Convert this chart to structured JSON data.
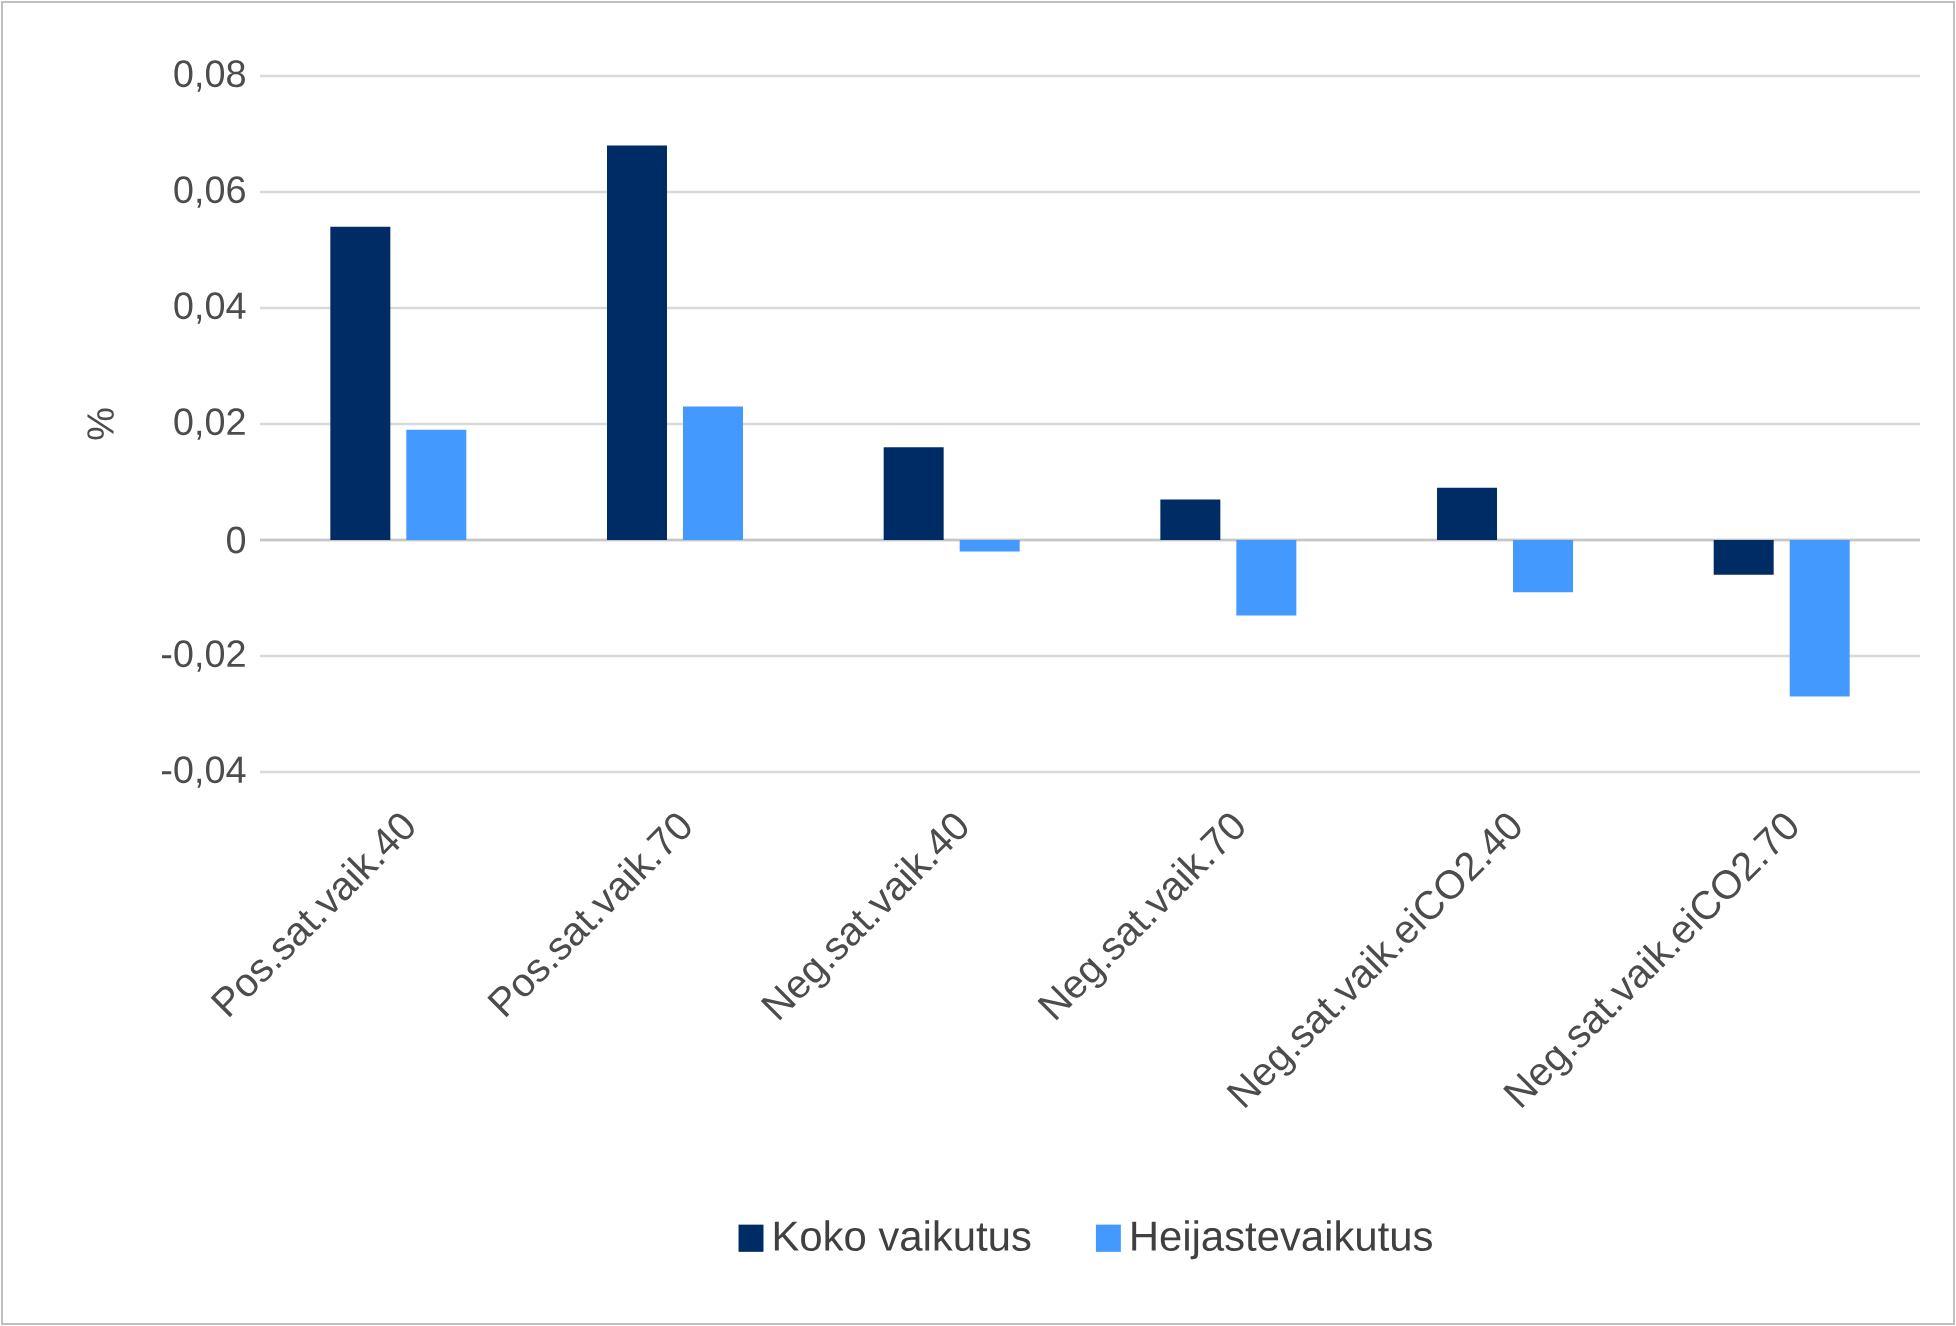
{
  "chart_data": {
    "type": "bar",
    "ylabel": "%",
    "categories": [
      "Pos.sat.vaik.40",
      "Pos.sat.vaik.70",
      "Neg.sat.vaik.40",
      "Neg.sat.vaik.70",
      "Neg.sat.vaik.eiCO2.40",
      "Neg.sat.vaik.eiCO2.70"
    ],
    "series": [
      {
        "name": "Koko vaikutus",
        "color": "#002c66",
        "values": [
          0.054,
          0.068,
          0.016,
          0.007,
          0.009,
          -0.006
        ]
      },
      {
        "name": "Heijastevaikutus",
        "color": "#4499ff",
        "values": [
          0.019,
          0.023,
          -0.002,
          -0.013,
          -0.009,
          -0.027
        ]
      }
    ],
    "ylim": [
      -0.04,
      0.08
    ],
    "yticks": [
      {
        "value": -0.04,
        "label": "-0,04"
      },
      {
        "value": -0.02,
        "label": "-0,02"
      },
      {
        "value": 0,
        "label": "0"
      },
      {
        "value": 0.02,
        "label": "0,02"
      },
      {
        "value": 0.04,
        "label": "0,04"
      },
      {
        "value": 0.06,
        "label": "0,06"
      },
      {
        "value": 0.08,
        "label": "0,08"
      }
    ],
    "grid": "y",
    "legend": "bottom"
  }
}
